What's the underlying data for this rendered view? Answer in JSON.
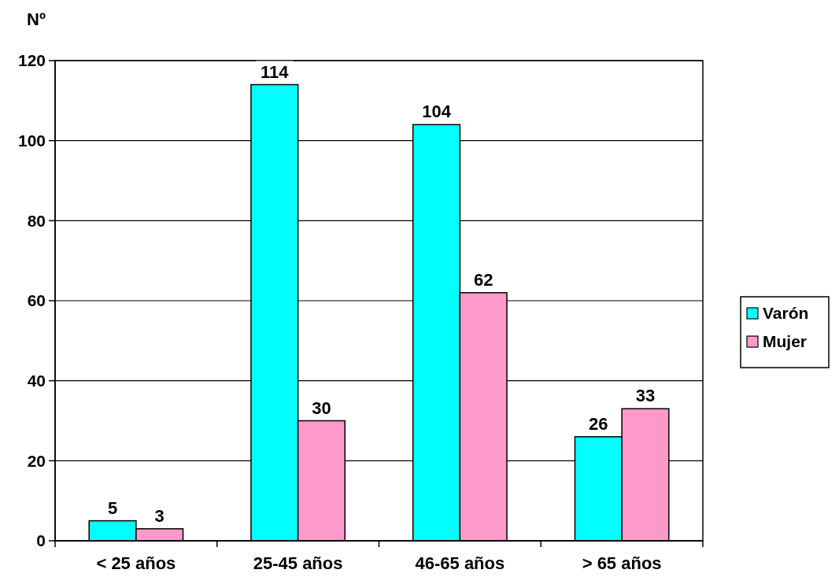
{
  "chart_data": {
    "type": "bar",
    "ylabel": "Nº",
    "categories": [
      "< 25 años",
      "25-45 años",
      "46-65 años",
      "> 65 años"
    ],
    "series": [
      {
        "name": "Varón",
        "color": "#00ffff",
        "values": [
          5,
          114,
          104,
          26
        ]
      },
      {
        "name": "Mujer",
        "color": "#ff99cc",
        "values": [
          3,
          30,
          62,
          33
        ]
      }
    ],
    "ylim": [
      0,
      120
    ],
    "yticks": [
      0,
      20,
      40,
      60,
      80,
      100,
      120
    ],
    "grid": "y",
    "legend": "right",
    "data_labels": true
  }
}
